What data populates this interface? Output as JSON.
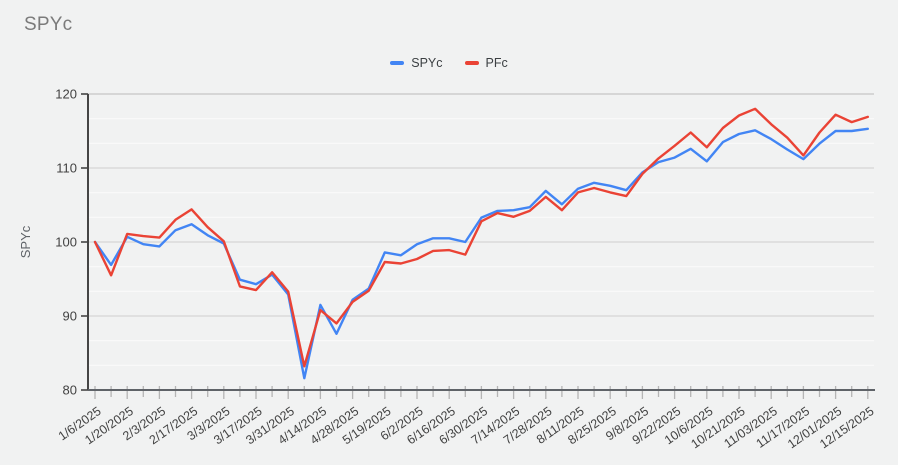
{
  "header": {
    "title": "SPYc"
  },
  "legend": [
    {
      "label": "SPYc",
      "color": "#4285f4"
    },
    {
      "label": "PFc",
      "color": "#ea4335"
    }
  ],
  "chart_data": {
    "type": "line",
    "title": "SPYc",
    "xlabel": "",
    "ylabel": "SPYc",
    "ylim": [
      80,
      120
    ],
    "y_ticks": [
      80,
      90,
      100,
      110,
      120
    ],
    "minor_gridlines_per_interval": 2,
    "legend_position": "top-center",
    "grid": "on",
    "x_tick_labels": [
      "1/6/2025",
      "1/20/2025",
      "2/3/2025",
      "2/17/2025",
      "3/3/2025",
      "3/17/2025",
      "3/31/2025",
      "4/14/2025",
      "4/28/2025",
      "5/19/2025",
      "6/2/2025",
      "6/16/2025",
      "6/30/2025",
      "7/14/2025",
      "7/28/2025",
      "8/11/2025",
      "8/25/2025",
      "9/8/2025",
      "9/22/2025",
      "10/6/2025",
      "10/21/2025",
      "11/03/2025",
      "11/17/2025",
      "12/01/2025",
      "12/15/2025"
    ],
    "labels_every_n_points": 2,
    "series": [
      {
        "name": "SPYc",
        "color": "#4285f4",
        "values": [
          100.0,
          96.9,
          100.7,
          99.7,
          99.4,
          101.6,
          102.4,
          100.9,
          99.8,
          94.9,
          94.3,
          95.6,
          92.9,
          81.6,
          91.5,
          87.6,
          92.2,
          93.7,
          98.6,
          98.2,
          99.7,
          100.5,
          100.5,
          100.0,
          103.3,
          104.2,
          104.3,
          104.7,
          106.9,
          105.1,
          107.2,
          108.0,
          107.6,
          107.0,
          109.4,
          110.8,
          111.4,
          112.6,
          110.9,
          113.5,
          114.6,
          115.1,
          113.9,
          112.5,
          111.2,
          113.3,
          115.0,
          115.0,
          115.3
        ]
      },
      {
        "name": "PFc",
        "color": "#ea4335",
        "values": [
          100.0,
          95.5,
          101.1,
          100.8,
          100.6,
          103.0,
          104.4,
          102.0,
          100.1,
          94.0,
          93.5,
          95.9,
          93.3,
          83.2,
          90.8,
          89.0,
          91.9,
          93.4,
          97.3,
          97.1,
          97.7,
          98.8,
          98.9,
          98.3,
          102.8,
          103.9,
          103.4,
          104.2,
          106.1,
          104.3,
          106.7,
          107.3,
          106.7,
          106.2,
          109.2,
          111.3,
          113.0,
          114.8,
          112.8,
          115.4,
          117.1,
          118.0,
          115.9,
          114.1,
          111.7,
          114.8,
          117.2,
          116.2,
          116.9
        ]
      }
    ],
    "colors": {
      "background": "#f1f2f2",
      "title_text": "#7b7b7b",
      "axis_line": "#5f6368",
      "axis_text": "#424242",
      "grid_major": "#d6d6d6",
      "grid_top": "#c6c6c6",
      "grid_minor": "#fafafa",
      "tick": "#b5b5b5"
    }
  }
}
